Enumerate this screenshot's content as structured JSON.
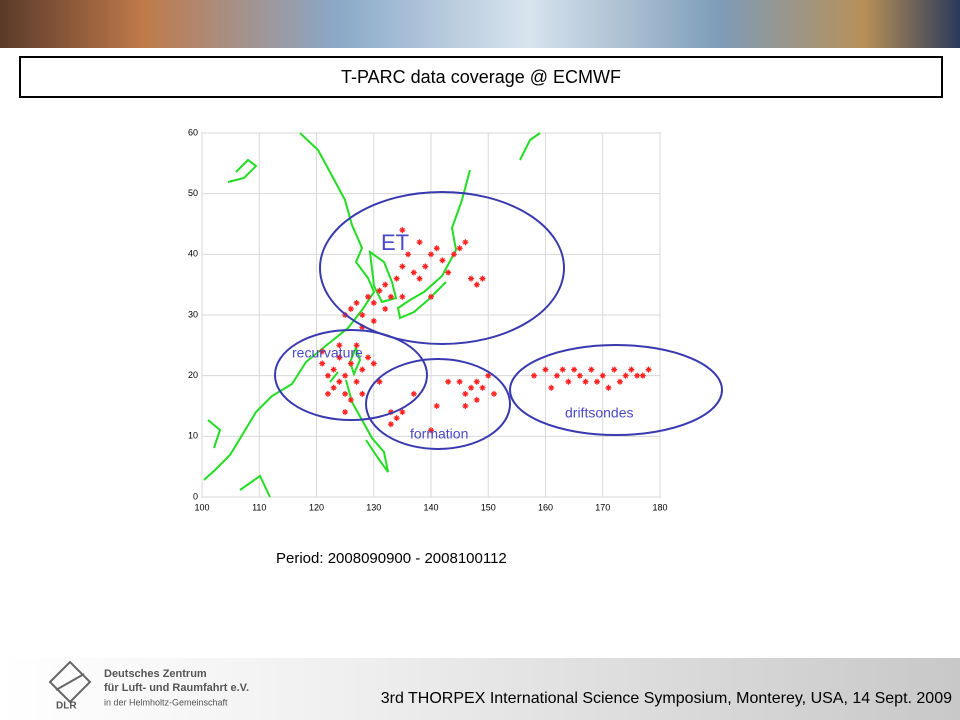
{
  "header": {
    "title": "T-PARC data coverage @ ECMWF"
  },
  "chart_data": {
    "type": "scatter",
    "xlim": [
      100,
      180
    ],
    "ylim": [
      0,
      60
    ],
    "xticks": [
      100,
      110,
      120,
      130,
      140,
      150,
      160,
      170,
      180
    ],
    "yticks": [
      0,
      10,
      20,
      30,
      40,
      50,
      60
    ],
    "grid": true,
    "series": [
      {
        "color": "#ff2020",
        "x": [
          121,
          122,
          123,
          124,
          125,
          126,
          124,
          123,
          125,
          127,
          128,
          122,
          126,
          129,
          121,
          124,
          127,
          130,
          128,
          125,
          125,
          126,
          127,
          128,
          129,
          130,
          131,
          132,
          133,
          134,
          135,
          136,
          137,
          138,
          139,
          140,
          141,
          142,
          143,
          144,
          145,
          146,
          147,
          148,
          149,
          140,
          135,
          128,
          130,
          132,
          138,
          135,
          133,
          134,
          135,
          133,
          140,
          141,
          145,
          146,
          147,
          148,
          149,
          150,
          151,
          146,
          148,
          137,
          131,
          143,
          158,
          160,
          162,
          163,
          164,
          165,
          166,
          168,
          169,
          170,
          172,
          174,
          175,
          177,
          161,
          167,
          171,
          173,
          176,
          178
        ],
        "y": [
          22,
          20,
          21,
          19,
          20,
          22,
          23,
          18,
          17,
          19,
          21,
          17,
          16,
          23,
          24,
          25,
          25,
          22,
          17,
          14,
          30,
          31,
          32,
          30,
          33,
          32,
          34,
          35,
          33,
          36,
          38,
          40,
          37,
          36,
          38,
          40,
          41,
          39,
          37,
          40,
          41,
          42,
          36,
          35,
          36,
          33,
          33,
          28,
          29,
          31,
          42,
          44,
          14,
          13,
          14,
          12,
          11,
          15,
          19,
          17,
          18,
          19,
          18,
          20,
          17,
          15,
          16,
          17,
          19,
          19,
          20,
          21,
          20,
          21,
          19,
          21,
          20,
          21,
          19,
          20,
          21,
          20,
          21,
          20,
          18,
          19,
          18,
          19,
          20,
          21
        ]
      }
    ],
    "annotations": [
      "ET",
      "recurvature",
      "formation",
      "driftsondes"
    ]
  },
  "period": "Period: 2008090900 - 2008100112",
  "footer": {
    "symposium": "3rd THORPEX International Science Symposium, Monterey, USA, 14 Sept. 2009",
    "logo_abbr": "DLR",
    "logo_lines": [
      "Deutsches Zentrum",
      "für Luft- und Raumfahrt e.V.",
      "in der Helmholtz-Gemeinschaft"
    ]
  }
}
